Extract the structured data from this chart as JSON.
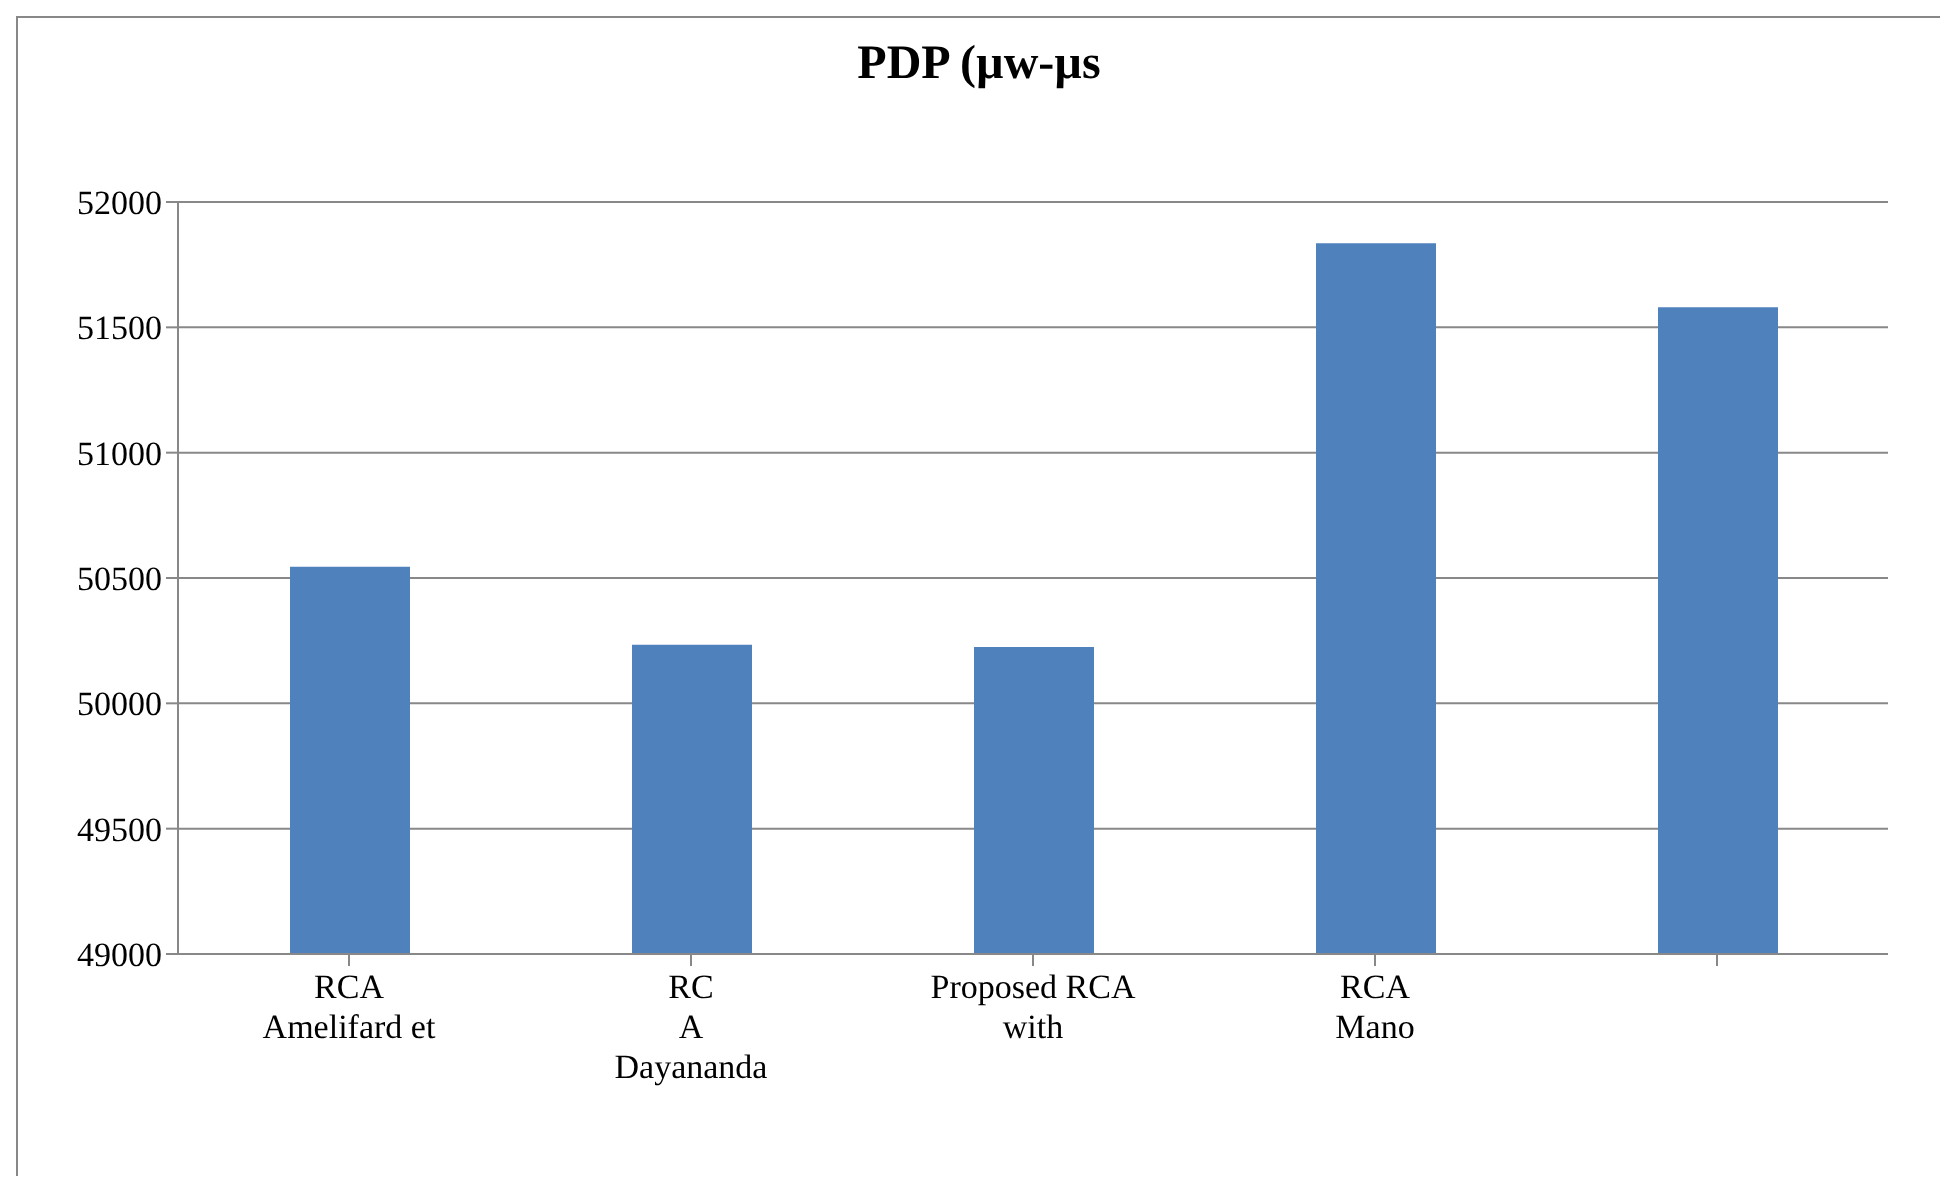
{
  "chart_data": {
    "type": "bar",
    "title": "PDP   (µw-µs",
    "categories": [
      "RCA\nAmelifard  et",
      "RC\nA\nDayananda",
      "Proposed RCA\nwith",
      "RCA\nMano",
      null
    ],
    "values": [
      50545,
      50234,
      50225,
      51835,
      51580
    ],
    "color": "#4f81bd",
    "ylim": [
      49000,
      52000
    ],
    "yticks": [
      49000,
      49500,
      50000,
      50500,
      51000,
      51500,
      52000
    ],
    "grid": "y"
  }
}
